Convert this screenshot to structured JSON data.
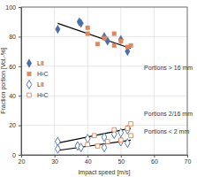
{
  "chart_data": {
    "type": "scatter",
    "x_label": "Impact speed [m/s]",
    "y_label": "Fraction portion [Vol.-%]",
    "xlim": [
      20,
      70
    ],
    "xticks": [
      20,
      30,
      40,
      50,
      60,
      70
    ],
    "ylim": [
      0,
      100
    ],
    "yticks": [
      0,
      20,
      40,
      60,
      80,
      100
    ],
    "grid": true,
    "legend": "center left",
    "series": [
      {
        "name": "LII",
        "color": "#4a6fa8",
        "marker": "diamond",
        "x": [
          31,
          37.5,
          38,
          45,
          46,
          50,
          52
        ],
        "values": [
          85,
          90,
          89,
          80,
          77,
          78,
          70
        ]
      },
      {
        "name": "H²C",
        "color": "#e0865a",
        "marker": "square",
        "x": [
          40,
          40,
          43,
          45,
          48,
          48,
          50,
          52,
          53
        ],
        "values": [
          86,
          82,
          75,
          79,
          82,
          74,
          77,
          73,
          74
        ]
      },
      {
        "name": "LII",
        "color": "#4a6fa8",
        "marker": "diamond-open",
        "x": [
          31,
          31,
          37,
          38,
          40,
          45,
          45,
          48,
          50,
          50,
          52,
          52
        ],
        "values": [
          9,
          4,
          6,
          5,
          11,
          12,
          5,
          14,
          15,
          9,
          17,
          8
        ]
      },
      {
        "name": "H²C",
        "color": "#e0865a",
        "marker": "square-open",
        "x": [
          40,
          42,
          43,
          46,
          48,
          50,
          52,
          53,
          53
        ],
        "values": [
          7,
          13,
          6,
          9,
          17,
          10,
          18,
          21,
          13
        ]
      }
    ],
    "trend_lines": [
      {
        "color": "#000000",
        "x": [
          31,
          53
        ],
        "values": [
          89,
          72
        ]
      },
      {
        "color": "#000000",
        "x": [
          31,
          53
        ],
        "values": [
          8,
          18
        ]
      },
      {
        "color": "#000000",
        "x": [
          31,
          53
        ],
        "values": [
          3,
          10
        ]
      }
    ],
    "annotations": [
      {
        "text": "Portions > 16 mm",
        "x": 57,
        "y": 59
      },
      {
        "text": "Portions 2/16 mm",
        "x": 57,
        "y": 28
      },
      {
        "text": "Portions < 2 mm",
        "x": 57,
        "y": 16
      }
    ]
  }
}
